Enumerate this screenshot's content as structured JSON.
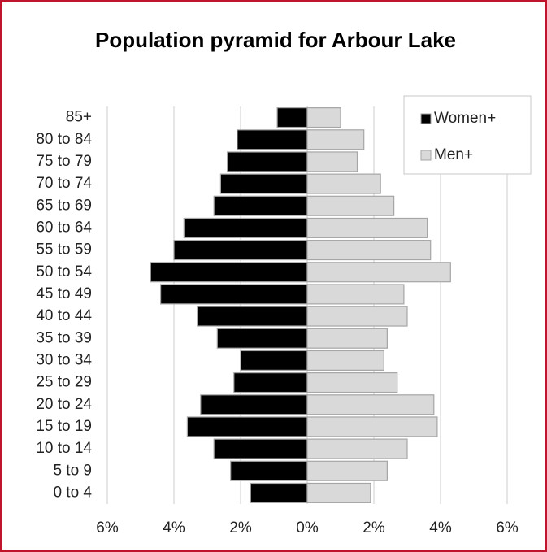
{
  "chart_data": {
    "type": "pyramid",
    "title": "Population pyramid for Arbour Lake",
    "categories": [
      "85+",
      "80 to 84",
      "75 to 79",
      "70 to 74",
      "65 to 69",
      "60 to 64",
      "55 to 59",
      "50 to 54",
      "45 to 49",
      "40 to 44",
      "35 to 39",
      "30 to 34",
      "25 to 29",
      "20 to 24",
      "15 to 19",
      "10 to 14",
      "5 to 9",
      "0 to 4"
    ],
    "series": [
      {
        "name": "Women+",
        "color": "#000000",
        "values": [
          -0.9,
          -2.1,
          -2.4,
          -2.6,
          -2.8,
          -3.7,
          -4.0,
          -4.7,
          -4.4,
          -3.3,
          -2.7,
          -2.0,
          -2.2,
          -3.2,
          -3.6,
          -2.8,
          -2.3,
          -1.7
        ]
      },
      {
        "name": "Men+",
        "color": "#d9d9d9",
        "values": [
          1.0,
          1.7,
          1.5,
          2.2,
          2.6,
          3.6,
          3.7,
          4.3,
          2.9,
          3.0,
          2.4,
          2.3,
          2.7,
          3.8,
          3.9,
          3.0,
          2.4,
          1.9
        ]
      }
    ],
    "xlim": [
      -6,
      6
    ],
    "xticks": [
      {
        "value": -6,
        "label": "6%"
      },
      {
        "value": -4,
        "label": "4%"
      },
      {
        "value": -2,
        "label": "2%"
      },
      {
        "value": 0,
        "label": "0%"
      },
      {
        "value": 2,
        "label": "2%"
      },
      {
        "value": 4,
        "label": "4%"
      },
      {
        "value": 6,
        "label": "6%"
      }
    ],
    "grid": true,
    "legend": "top-right"
  }
}
